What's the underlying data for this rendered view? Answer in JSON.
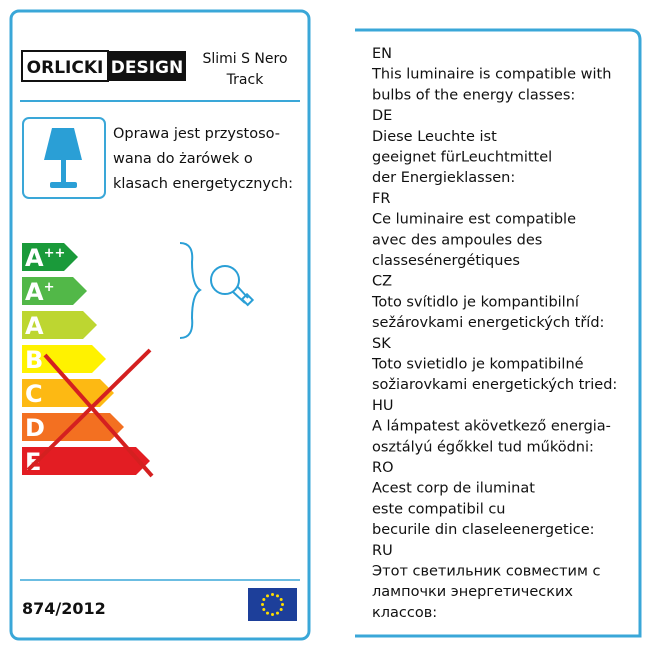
{
  "header": {
    "brand": [
      "ORLICKI",
      "DESIGN"
    ],
    "product": [
      "Slimi S Nero",
      "Track"
    ]
  },
  "compatibility_text": [
    "Oprawa jest przystoso-",
    "wana do żarówek o",
    "klasach energetycznych:"
  ],
  "energy_classes": [
    {
      "letter": "A",
      "sup": "++",
      "color": "#1a9a3a"
    },
    {
      "letter": "A",
      "sup": "+",
      "color": "#52b848"
    },
    {
      "letter": "A",
      "sup": "",
      "color": "#bdd631"
    },
    {
      "letter": "B",
      "sup": "",
      "color": "#fff200"
    },
    {
      "letter": "C",
      "sup": "",
      "color": "#fdb913"
    },
    {
      "letter": "D",
      "sup": "",
      "color": "#f37021"
    },
    {
      "letter": "E",
      "sup": "",
      "color": "#e31d23"
    }
  ],
  "regulation": "874/2012",
  "languages": [
    {
      "code": "EN",
      "lines": [
        "This luminaire is compatible with",
        "bulbs of the energy classes:"
      ]
    },
    {
      "code": "DE",
      "lines": [
        "Diese Leuchte ist",
        "geeignet fürLeuchtmittel",
        "der Energieklassen:"
      ]
    },
    {
      "code": "FR",
      "lines": [
        "Ce luminaire est compatible",
        "avec des ampoules des",
        "classesénergétiques"
      ]
    },
    {
      "code": "CZ",
      "lines": [
        "Toto svítidlo je kompantibilní",
        "sežárovkami energetických tříd:"
      ]
    },
    {
      "code": "SK",
      "lines": [
        "Toto svietidlo je kompatibilné",
        "sožiarovkami energetických tried:"
      ]
    },
    {
      "code": "HU",
      "lines": [
        "A lámpatest akövetkező energia-",
        "osztályú égőkkel tud működni:"
      ]
    },
    {
      "code": "RO",
      "lines": [
        "Acest corp de iluminat",
        "este compatibil cu",
        "becurile din claseleenergetice:"
      ]
    },
    {
      "code": "RU",
      "lines": [
        "Этот светильник совместим с",
        "лампочки энергетических",
        "классов:"
      ]
    }
  ]
}
